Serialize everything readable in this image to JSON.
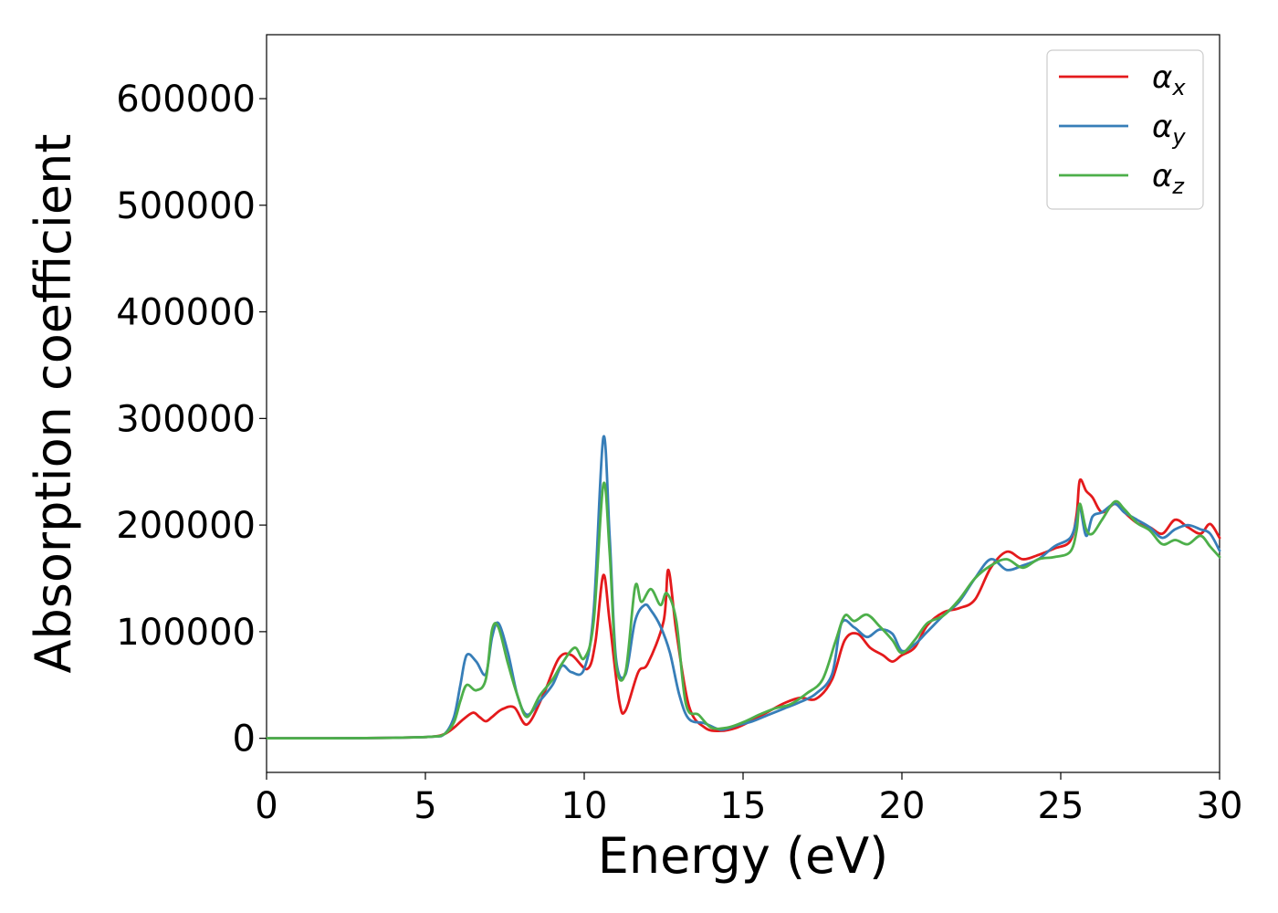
{
  "chart_data": {
    "type": "line",
    "title": "",
    "xlabel": "Energy (eV)",
    "ylabel": "Absorption coefficient",
    "xlim": [
      0,
      30
    ],
    "ylim": [
      -32000,
      660000
    ],
    "xticks": [
      0,
      5,
      10,
      15,
      20,
      25,
      30
    ],
    "xtick_labels": [
      "0",
      "5",
      "10",
      "15",
      "20",
      "25",
      "30"
    ],
    "yticks": [
      0,
      100000,
      200000,
      300000,
      400000,
      500000,
      600000
    ],
    "ytick_labels": [
      "0",
      "100000",
      "200000",
      "300000",
      "400000",
      "500000",
      "600000"
    ],
    "grid": false,
    "legend_position": "top-right",
    "series": [
      {
        "name": "α",
        "subscript": "x",
        "color": "#e41a1c",
        "x": [
          0,
          2,
          4,
          5.2,
          5.6,
          5.9,
          6.2,
          6.5,
          6.7,
          6.9,
          7.1,
          7.4,
          7.8,
          8.2,
          8.7,
          9.2,
          9.6,
          10.1,
          10.35,
          10.6,
          10.8,
          11.1,
          11.3,
          11.7,
          12.0,
          12.5,
          12.65,
          12.9,
          13.3,
          13.8,
          14.3,
          14.8,
          15.3,
          15.8,
          16.3,
          16.8,
          17.3,
          17.8,
          18.2,
          18.6,
          19.0,
          19.4,
          19.7,
          20.0,
          20.4,
          20.8,
          21.3,
          21.8,
          22.3,
          22.8,
          23.3,
          23.8,
          24.3,
          24.8,
          25.3,
          25.5,
          25.6,
          25.8,
          26.0,
          26.3,
          26.7,
          27.0,
          27.4,
          27.8,
          28.2,
          28.6,
          29.0,
          29.4,
          29.7,
          30.0
        ],
        "y": [
          0,
          0,
          500,
          1500,
          4000,
          10000,
          18000,
          24000,
          20000,
          16000,
          20000,
          27000,
          29000,
          13000,
          40000,
          75000,
          78000,
          65000,
          90000,
          153000,
          110000,
          35000,
          26000,
          62000,
          70000,
          110000,
          158000,
          100000,
          30000,
          10000,
          7000,
          10000,
          17000,
          25000,
          33000,
          38000,
          37000,
          55000,
          92000,
          98000,
          85000,
          78000,
          72000,
          78000,
          85000,
          106000,
          118000,
          122000,
          130000,
          160000,
          175000,
          168000,
          172000,
          178000,
          185000,
          210000,
          242000,
          232000,
          226000,
          212000,
          220000,
          212000,
          202000,
          198000,
          192000,
          205000,
          198000,
          192000,
          201000,
          188000
        ]
      },
      {
        "name": "α",
        "subscript": "y",
        "color": "#377eb8",
        "x": [
          0,
          2,
          4,
          5.2,
          5.6,
          5.9,
          6.1,
          6.3,
          6.6,
          6.9,
          7.1,
          7.3,
          7.6,
          7.9,
          8.2,
          8.6,
          9.0,
          9.3,
          9.6,
          10.0,
          10.3,
          10.6,
          10.8,
          11.0,
          11.3,
          11.6,
          11.9,
          12.1,
          12.4,
          12.7,
          13.0,
          13.3,
          13.8,
          14.3,
          14.8,
          15.3,
          15.8,
          16.3,
          16.8,
          17.3,
          17.8,
          18.1,
          18.5,
          18.9,
          19.3,
          19.7,
          20.0,
          20.4,
          20.8,
          21.3,
          21.8,
          22.3,
          22.8,
          23.3,
          23.8,
          24.3,
          24.8,
          25.3,
          25.5,
          25.6,
          25.8,
          26.0,
          26.3,
          26.7,
          27.0,
          27.4,
          27.8,
          28.2,
          28.6,
          29.0,
          29.4,
          29.7,
          30.0
        ],
        "y": [
          0,
          0,
          500,
          1500,
          4000,
          20000,
          50000,
          78000,
          72000,
          60000,
          95000,
          108000,
          80000,
          40000,
          22000,
          35000,
          50000,
          68000,
          62000,
          65000,
          120000,
          282000,
          190000,
          75000,
          60000,
          110000,
          125000,
          120000,
          105000,
          80000,
          40000,
          18000,
          14000,
          8000,
          12000,
          16000,
          22000,
          28000,
          34000,
          42000,
          60000,
          108000,
          104000,
          95000,
          102000,
          98000,
          82000,
          88000,
          100000,
          115000,
          128000,
          150000,
          168000,
          158000,
          162000,
          168000,
          180000,
          188000,
          205000,
          218000,
          190000,
          208000,
          212000,
          220000,
          212000,
          205000,
          198000,
          188000,
          196000,
          200000,
          196000,
          192000,
          176000
        ]
      },
      {
        "name": "α",
        "subscript": "z",
        "color": "#4daf4a",
        "x": [
          0,
          2,
          4,
          5.2,
          5.6,
          5.9,
          6.1,
          6.3,
          6.6,
          6.9,
          7.1,
          7.3,
          7.6,
          7.9,
          8.2,
          8.6,
          9.0,
          9.3,
          9.7,
          10.0,
          10.3,
          10.6,
          10.8,
          11.0,
          11.3,
          11.6,
          11.8,
          12.1,
          12.4,
          12.6,
          12.9,
          13.2,
          13.6,
          14.0,
          14.5,
          15.0,
          15.5,
          16.0,
          16.5,
          17.0,
          17.5,
          17.9,
          18.2,
          18.5,
          18.9,
          19.3,
          19.7,
          20.0,
          20.4,
          20.8,
          21.3,
          21.8,
          22.3,
          22.8,
          23.3,
          23.8,
          24.3,
          24.8,
          25.3,
          25.5,
          25.6,
          25.8,
          26.0,
          26.3,
          26.7,
          27.0,
          27.4,
          27.8,
          28.2,
          28.6,
          29.0,
          29.4,
          29.7,
          30.0
        ],
        "y": [
          0,
          0,
          500,
          1500,
          4000,
          15000,
          35000,
          50000,
          45000,
          55000,
          102000,
          104000,
          70000,
          40000,
          20000,
          40000,
          55000,
          70000,
          85000,
          75000,
          110000,
          238000,
          175000,
          70000,
          62000,
          142000,
          128000,
          140000,
          125000,
          136000,
          110000,
          32000,
          22000,
          10000,
          10000,
          15000,
          22000,
          28000,
          32000,
          42000,
          55000,
          90000,
          115000,
          110000,
          116000,
          105000,
          92000,
          80000,
          92000,
          108000,
          115000,
          130000,
          150000,
          162000,
          168000,
          160000,
          168000,
          170000,
          175000,
          195000,
          220000,
          196000,
          192000,
          205000,
          222000,
          215000,
          202000,
          195000,
          182000,
          186000,
          182000,
          190000,
          180000,
          170000
        ]
      }
    ]
  }
}
